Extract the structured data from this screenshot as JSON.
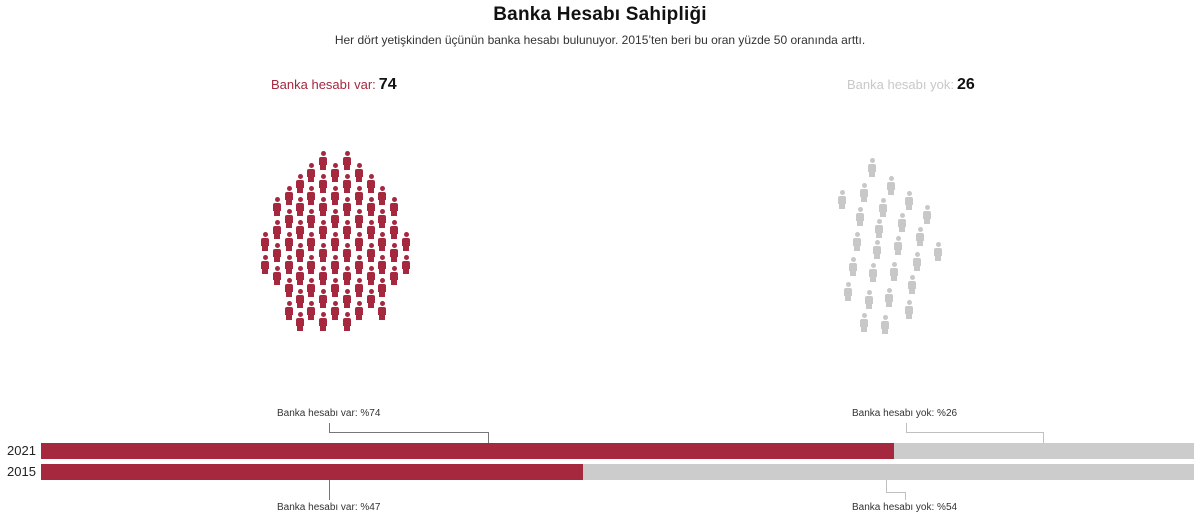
{
  "title": "Banka Hesabı Sahipliği",
  "subtitle": "Her dört yetişkinden üçünün banka hesabı bulunuyor. 2015’ten beri bu oran yüzde 50 oranında arttı.",
  "counts": {
    "var": {
      "label": "Banka hesabı var:",
      "value": "74"
    },
    "yok": {
      "label": "Banka hesabı yok:",
      "value": "26"
    }
  },
  "colors": {
    "var": "#a5283f",
    "yok": "#cccccc"
  },
  "bars": [
    {
      "year": "2021",
      "var_pct": 74,
      "yok_pct": 26,
      "var_label": "Banka hesabı var: %74",
      "yok_label": "Banka hesabı yok: %26"
    },
    {
      "year": "2015",
      "var_pct": 47,
      "yok_pct": 54,
      "var_label": "Banka hesabı var: %47",
      "yok_label": "Banka hesabı yok: %54"
    }
  ],
  "chart_data": [
    {
      "type": "pictogram",
      "title": "Banka Hesabı Sahipliği",
      "subtitle": "Her dört yetişkinden üçünün banka hesabı bulunuyor. 2015’ten beri bu oran yüzde 50 oranında arttı.",
      "categories": [
        "Banka hesabı var",
        "Banka hesabı yok"
      ],
      "values": [
        74,
        26
      ],
      "unit": "people out of 100"
    },
    {
      "type": "bar",
      "orientation": "horizontal-stacked",
      "categories": [
        "2021",
        "2015"
      ],
      "series": [
        {
          "name": "Banka hesabı var",
          "values": [
            74,
            47
          ]
        },
        {
          "name": "Banka hesabı yok",
          "values": [
            26,
            54
          ]
        }
      ],
      "annotations": [
        "Banka hesabı var: %74",
        "Banka hesabı yok: %26",
        "Banka hesabı var: %47",
        "Banka hesabı yok: %54"
      ],
      "xlim": [
        0,
        100
      ],
      "grid": false
    }
  ]
}
